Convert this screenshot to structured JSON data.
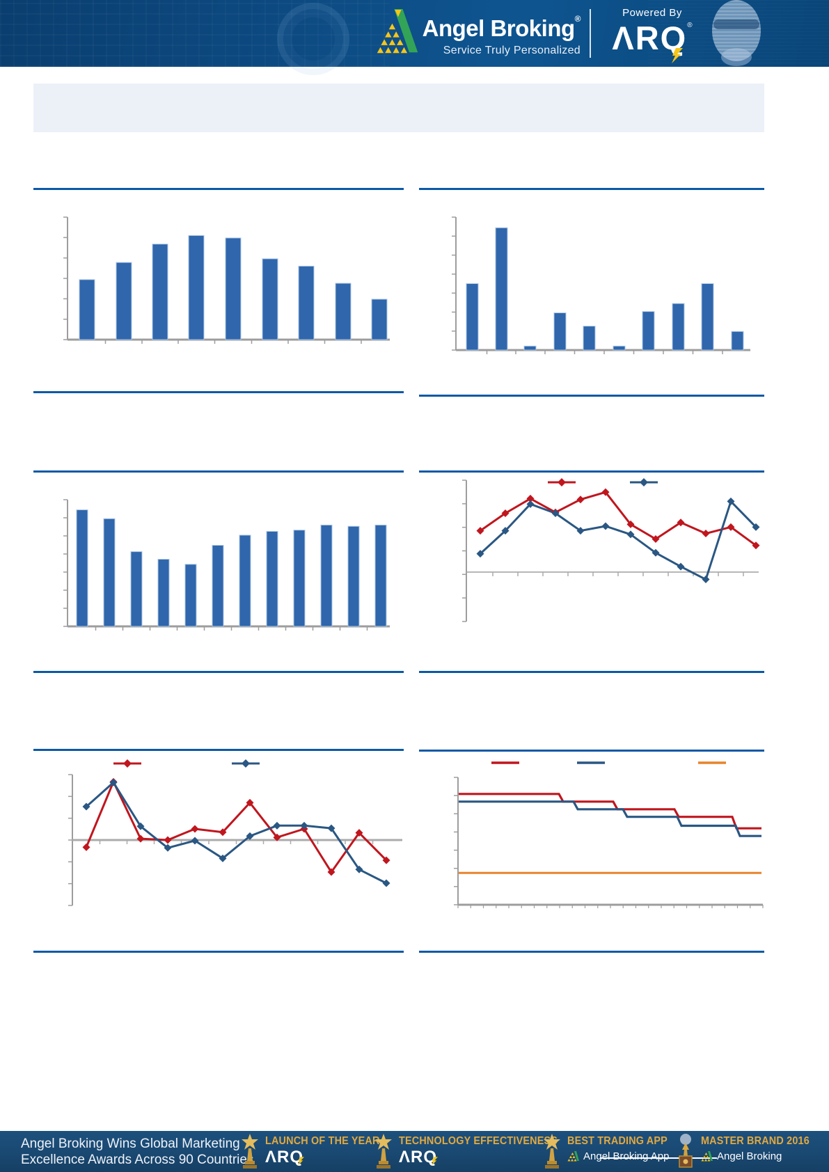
{
  "header": {
    "brand_name": "Angel Broking",
    "reg_mark": "®",
    "tagline": "Service Truly Personalized",
    "powered_by": "Powered By",
    "arq_logo": "ΛRQ"
  },
  "title_box": {
    "text": ""
  },
  "footer": {
    "headline_line1": "Angel Broking Wins Global Marketing",
    "headline_line2": "Excellence Awards Across 90 Countries",
    "awards": [
      {
        "title": "LAUNCH OF THE YEAR",
        "sub": "ΛRQ"
      },
      {
        "title": "TECHNOLOGY EFFECTIVENESS",
        "sub": "ΛRQ"
      },
      {
        "title": "BEST TRADING APP",
        "sub": "Angel Broking App"
      },
      {
        "title": "MASTER BRAND 2016",
        "sub": "Angel Broking"
      }
    ]
  },
  "colors": {
    "bar_blue": "#2f66ac",
    "bar_edge": "#aec7e5",
    "series_red": "#c0161e",
    "series_blue": "#2a5783",
    "series_orange": "#e8842c",
    "axis_gray": "#9d9d9d",
    "zero_gray": "#ababab",
    "rule_blue": "#0b59a6",
    "header_blue": "#0d4b83",
    "footer_blue": "#1a4a74",
    "gold": "#e2a93f",
    "title_box_bg": "#ecf1f8",
    "logo_green": "#33a457",
    "logo_yellow": "#f5c518"
  },
  "chart_data": [
    {
      "id": "top-left",
      "type": "bar",
      "values": [
        4.9,
        6.3,
        7.8,
        8.5,
        8.3,
        6.6,
        6.0,
        4.6,
        3.3
      ],
      "ylim": [
        0,
        10
      ],
      "title": "",
      "xlabel": "",
      "ylabel": "",
      "tick_labels_visible": false,
      "grid": false
    },
    {
      "id": "top-right",
      "type": "bar",
      "values": [
        5.0,
        9.2,
        0.3,
        2.8,
        1.8,
        0.3,
        2.9,
        3.5,
        5.0,
        1.4
      ],
      "ylim": [
        0,
        10
      ],
      "title": "",
      "xlabel": "",
      "ylabel": "",
      "tick_labels_visible": false,
      "grid": false
    },
    {
      "id": "mid-left",
      "type": "bar",
      "values": [
        9.2,
        8.5,
        5.9,
        5.3,
        4.9,
        6.4,
        7.2,
        7.5,
        7.6,
        8.0,
        7.9,
        8.0
      ],
      "ylim": [
        0,
        10
      ],
      "title": "",
      "xlabel": "",
      "ylabel": "",
      "tick_labels_visible": false,
      "grid": false
    },
    {
      "id": "mid-right",
      "type": "line",
      "marker": "diamond",
      "legend_position": "top",
      "legend_labels_visible": false,
      "series": [
        {
          "name": "series-red",
          "color": "#c0161e",
          "values": [
            4.5,
            6.4,
            8.0,
            6.5,
            7.9,
            8.7,
            5.2,
            3.6,
            5.4,
            4.2,
            4.9,
            2.9
          ]
        },
        {
          "name": "series-blue",
          "color": "#2a5783",
          "values": [
            2.0,
            4.5,
            7.4,
            6.4,
            4.5,
            5.0,
            4.1,
            2.1,
            0.6,
            -0.8,
            7.7,
            4.9
          ]
        }
      ],
      "ylim": [
        -5.4,
        10
      ],
      "title": "",
      "xlabel": "",
      "ylabel": "",
      "tick_labels_visible": false,
      "grid": false
    },
    {
      "id": "bottom-left",
      "type": "line",
      "marker": "diamond",
      "legend_position": "top",
      "legend_labels_visible": false,
      "series": [
        {
          "name": "series-red",
          "color": "#c0161e",
          "values": [
            -1.1,
            8.9,
            0.2,
            0.0,
            1.7,
            1.2,
            5.7,
            0.4,
            1.7,
            -4.9,
            1.1,
            -3.1
          ]
        },
        {
          "name": "series-blue",
          "color": "#2a5783",
          "values": [
            5.1,
            8.8,
            2.1,
            -1.2,
            -0.1,
            -2.8,
            0.6,
            2.2,
            2.2,
            1.8,
            -4.5,
            -6.6
          ]
        }
      ],
      "ylim": [
        -10,
        10
      ],
      "title": "",
      "xlabel": "",
      "ylabel": "",
      "tick_labels_visible": false,
      "grid": false
    },
    {
      "id": "bottom-right",
      "type": "step",
      "legend_position": "top",
      "legend_labels_visible": false,
      "series": [
        {
          "name": "series-red",
          "color": "#c0161e",
          "levels": [
            8.7,
            8.1,
            7.5,
            6.9,
            6.0
          ],
          "step_x": [
            0.33,
            0.51,
            0.71,
            0.9
          ]
        },
        {
          "name": "series-blue",
          "color": "#2a5783",
          "levels": [
            8.1,
            7.5,
            6.9,
            6.2,
            5.4
          ],
          "step_x": [
            0.38,
            0.54,
            0.72,
            0.91
          ]
        },
        {
          "name": "series-orange",
          "color": "#e8842c",
          "levels": [
            2.5
          ],
          "step_x": []
        }
      ],
      "ylim": [
        0,
        10
      ],
      "title": "",
      "xlabel": "",
      "ylabel": "",
      "tick_labels_visible": false,
      "grid": false
    }
  ]
}
